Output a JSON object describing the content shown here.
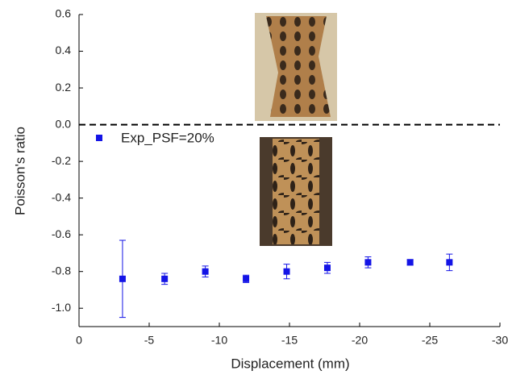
{
  "chart_data": {
    "type": "scatter",
    "xlabel": "Displacement (mm)",
    "ylabel": "Poisson's ratio",
    "xlim": [
      0,
      -30
    ],
    "xticks": [
      0,
      -5,
      -10,
      -15,
      -20,
      -25,
      -30
    ],
    "ylim": [
      -1.1,
      0.6
    ],
    "yticks": [
      {
        "value": -1,
        "label": "-1.0"
      },
      -0.8,
      -0.6,
      -0.4,
      -0.2,
      {
        "value": 0,
        "label": "0.0"
      },
      0.2,
      0.4,
      0.6
    ],
    "reference_line": 0,
    "legend": "upper left",
    "series": [
      {
        "name": "Exp_PSF=20%",
        "color": "#1414e6",
        "x": [
          -3.1,
          -6.1,
          -9.0,
          -11.9,
          -14.8,
          -17.7,
          -20.6,
          -23.6,
          -26.4
        ],
        "values": [
          -0.84,
          -0.84,
          -0.8,
          -0.84,
          -0.8,
          -0.78,
          -0.75,
          -0.75,
          -0.75
        ],
        "errors": [
          0.21,
          0.03,
          0.03,
          0.02,
          0.04,
          0.03,
          0.03,
          0.015,
          0.045
        ]
      }
    ]
  }
}
